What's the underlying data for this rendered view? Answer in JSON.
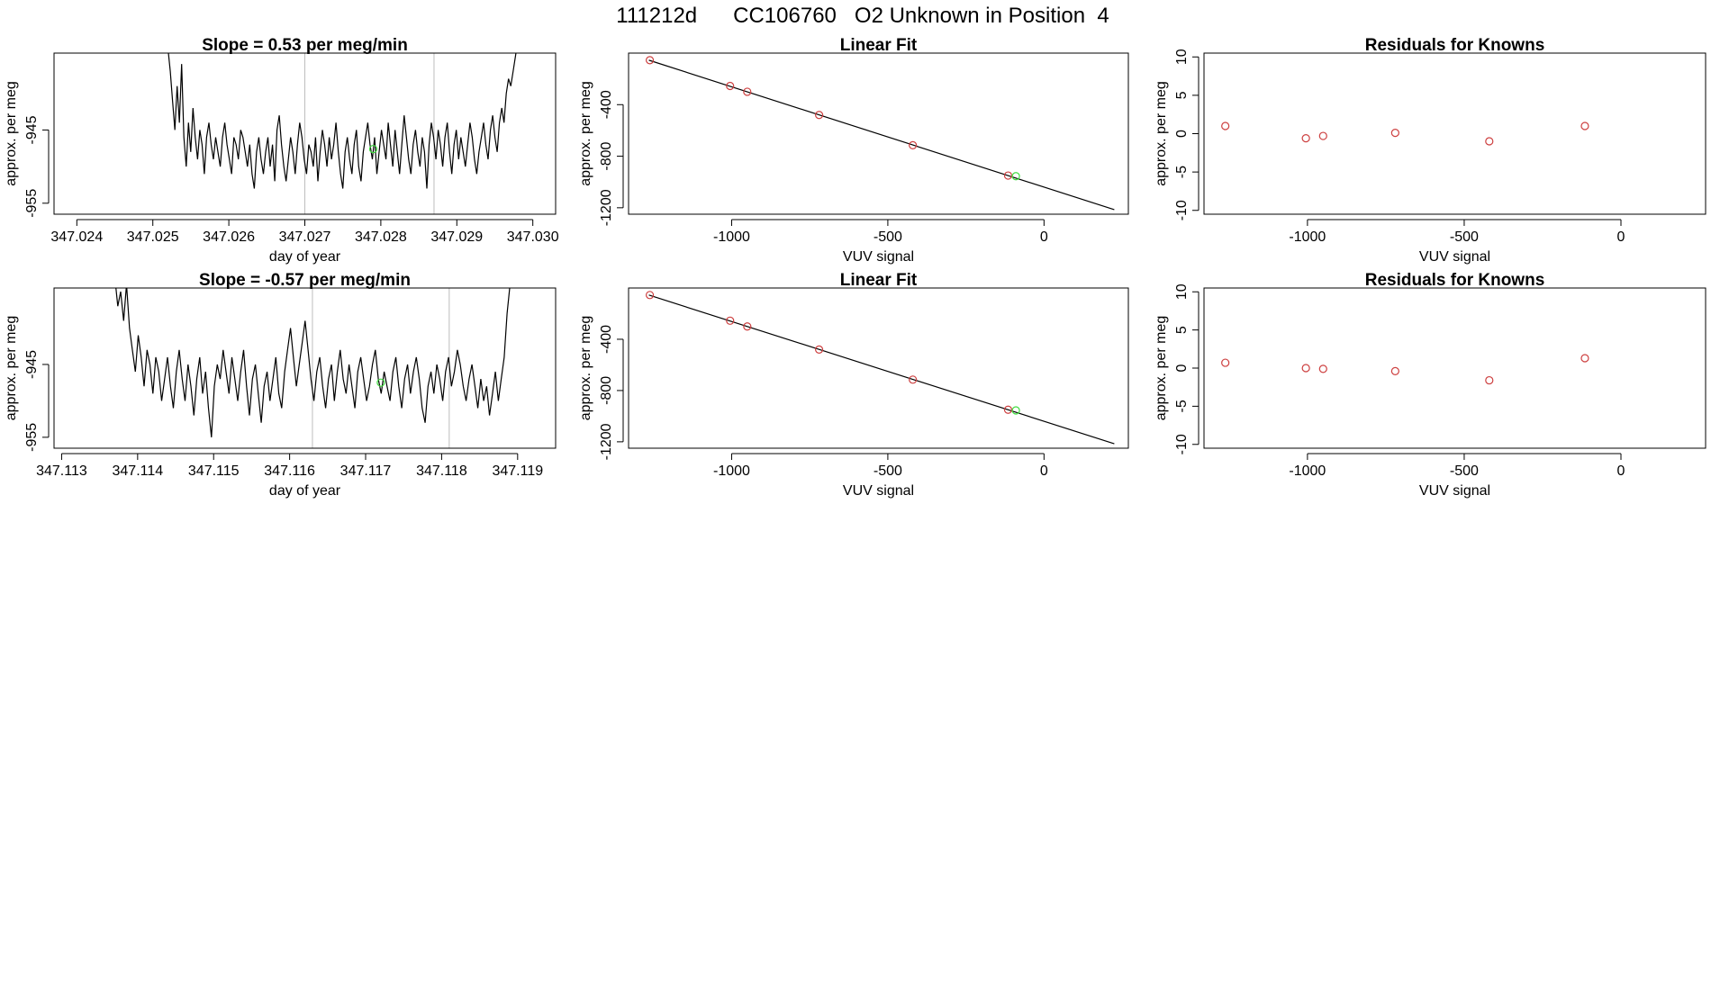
{
  "figure_title": "111212d      CC106760   O2 Unknown in Position  4",
  "colors": {
    "line": "#000000",
    "known_point": "#cd3f3f",
    "unknown_point": "#3fdc3f",
    "gridline": "#bebebe",
    "frame": "#000000"
  },
  "chart_data": [
    {
      "type": "line",
      "title": "Slope =  0.53  per meg/min",
      "xlabel": "day of year",
      "ylabel": "approx. per meg",
      "xlim": [
        347.0237,
        347.0303
      ],
      "ylim": [
        -956.5,
        -934.5
      ],
      "xticks": [
        "347.024",
        "347.025",
        "347.026",
        "347.027",
        "347.028",
        "347.029",
        "347.030"
      ],
      "xtick_values": [
        347.024,
        347.025,
        347.026,
        347.027,
        347.028,
        347.029,
        347.03
      ],
      "yticks": [
        "-945",
        "-955"
      ],
      "ytick_values": [
        -945,
        -955
      ],
      "vlines": [
        347.027,
        347.0287
      ],
      "marker": {
        "x": 347.0279,
        "y": -947.6
      },
      "series": [
        {
          "x_start": 347.0252,
          "x_end": 347.0298,
          "values": [
            -934,
            -937,
            -941,
            -945,
            -939,
            -944,
            -936,
            -946,
            -950,
            -944,
            -948,
            -942,
            -946,
            -949,
            -945,
            -947,
            -951,
            -946,
            -944,
            -947,
            -949,
            -946,
            -948,
            -950,
            -946,
            -944,
            -947,
            -949,
            -951,
            -946,
            -947,
            -949,
            -945,
            -946,
            -948,
            -950,
            -947,
            -951,
            -953,
            -948,
            -946,
            -949,
            -951,
            -948,
            -946,
            -950,
            -947,
            -952,
            -945,
            -943,
            -947,
            -950,
            -952,
            -949,
            -946,
            -948,
            -951,
            -947,
            -944,
            -946,
            -949,
            -951,
            -947,
            -948,
            -950,
            -946,
            -952,
            -948,
            -945,
            -947,
            -950,
            -946,
            -949,
            -947,
            -944,
            -948,
            -951,
            -953,
            -948,
            -946,
            -949,
            -951,
            -947,
            -945,
            -950,
            -952,
            -948,
            -946,
            -944,
            -947,
            -949,
            -946,
            -951,
            -948,
            -945,
            -947,
            -949,
            -944,
            -947,
            -950,
            -945,
            -948,
            -951,
            -947,
            -943,
            -946,
            -949,
            -951,
            -947,
            -945,
            -948,
            -950,
            -946,
            -948,
            -953,
            -947,
            -944,
            -946,
            -949,
            -945,
            -947,
            -950,
            -946,
            -944,
            -948,
            -951,
            -947,
            -945,
            -949,
            -946,
            -948,
            -950,
            -947,
            -944,
            -946,
            -949,
            -951,
            -948,
            -946,
            -944,
            -947,
            -949,
            -945,
            -943,
            -946,
            -948,
            -944,
            -942,
            -944,
            -940,
            -938,
            -939,
            -937,
            -935,
            -933
          ]
        }
      ]
    },
    {
      "type": "scatter",
      "title": "Linear Fit",
      "xlabel": "VUV signal",
      "ylabel": "approx. per meg",
      "xlim": [
        -1330,
        270
      ],
      "ylim": [
        -1250,
        0
      ],
      "xticks": [
        "-1000",
        "-500",
        "0"
      ],
      "xtick_values": [
        -1000,
        -500,
        0
      ],
      "yticks": [
        "-400",
        "-800",
        "-1200"
      ],
      "ytick_values": [
        -400,
        -800,
        -1200
      ],
      "fit_line": {
        "x": [
          -1265,
          225
        ],
        "y": [
          -55,
          -1215
        ]
      },
      "known_points": {
        "x": [
          -1262,
          -1005,
          -950,
          -720,
          -420,
          -115
        ],
        "y": [
          -55,
          -255,
          -300,
          -480,
          -715,
          -950
        ]
      },
      "unknown_points": {
        "x": [
          -90
        ],
        "y": [
          -955
        ]
      }
    },
    {
      "type": "scatter",
      "title": "Residuals for Knowns",
      "xlabel": "VUV signal",
      "ylabel": "approx. per meg",
      "xlim": [
        -1330,
        270
      ],
      "ylim": [
        -10.5,
        10.5
      ],
      "xticks": [
        "-1000",
        "-500",
        "0"
      ],
      "xtick_values": [
        -1000,
        -500,
        0
      ],
      "yticks": [
        "10",
        "5",
        "0",
        "-5",
        "-10"
      ],
      "ytick_values": [
        10,
        5,
        0,
        -5,
        -10
      ],
      "known_points": {
        "x": [
          -1262,
          -1005,
          -950,
          -720,
          -420,
          -115
        ],
        "y": [
          1.0,
          -0.6,
          -0.3,
          0.1,
          -1.0,
          1.0
        ]
      }
    },
    {
      "type": "line",
      "title": "Slope =  -0.57  per meg/min",
      "xlabel": "day of year",
      "ylabel": "approx. per meg",
      "xlim": [
        347.1129,
        347.1195
      ],
      "ylim": [
        -956.5,
        -934.5
      ],
      "xticks": [
        "347.113",
        "347.114",
        "347.115",
        "347.116",
        "347.117",
        "347.118",
        "347.119"
      ],
      "xtick_values": [
        347.113,
        347.114,
        347.115,
        347.116,
        347.117,
        347.118,
        347.119
      ],
      "yticks": [
        "-945",
        "-955"
      ],
      "ytick_values": [
        -945,
        -955
      ],
      "vlines": [
        347.1163,
        347.1181
      ],
      "marker": {
        "x": 347.1172,
        "y": -947.5
      },
      "series": [
        {
          "x_start": 347.1137,
          "x_end": 347.1189,
          "values": [
            -933,
            -937,
            -935,
            -939,
            -934,
            -940,
            -943,
            -946,
            -941,
            -944,
            -948,
            -943,
            -945,
            -949,
            -944,
            -946,
            -950,
            -947,
            -944,
            -948,
            -951,
            -946,
            -943,
            -947,
            -950,
            -945,
            -948,
            -952,
            -947,
            -944,
            -949,
            -946,
            -951,
            -955,
            -948,
            -945,
            -947,
            -943,
            -946,
            -949,
            -944,
            -947,
            -950,
            -946,
            -943,
            -948,
            -952,
            -947,
            -945,
            -949,
            -953,
            -948,
            -946,
            -950,
            -947,
            -944,
            -949,
            -951,
            -946,
            -943,
            -940,
            -944,
            -948,
            -945,
            -942,
            -939,
            -943,
            -947,
            -950,
            -946,
            -944,
            -948,
            -951,
            -947,
            -945,
            -950,
            -946,
            -943,
            -947,
            -949,
            -945,
            -948,
            -951,
            -946,
            -944,
            -947,
            -950,
            -948,
            -945,
            -943,
            -947,
            -949,
            -946,
            -948,
            -950,
            -946,
            -944,
            -948,
            -951,
            -947,
            -945,
            -949,
            -946,
            -944,
            -947,
            -951,
            -953,
            -948,
            -946,
            -949,
            -945,
            -947,
            -950,
            -946,
            -944,
            -948,
            -946,
            -943,
            -945,
            -948,
            -950,
            -947,
            -945,
            -948,
            -951,
            -947,
            -950,
            -948,
            -952,
            -949,
            -946,
            -950,
            -947,
            -944,
            -938,
            -934
          ]
        }
      ]
    },
    {
      "type": "scatter",
      "title": "Linear Fit",
      "xlabel": "VUV signal",
      "ylabel": "approx. per meg",
      "xlim": [
        -1330,
        270
      ],
      "ylim": [
        -1250,
        0
      ],
      "xticks": [
        "-1000",
        "-500",
        "0"
      ],
      "xtick_values": [
        -1000,
        -500,
        0
      ],
      "yticks": [
        "-400",
        "-800",
        "-1200"
      ],
      "ytick_values": [
        -400,
        -800,
        -1200
      ],
      "fit_line": {
        "x": [
          -1265,
          225
        ],
        "y": [
          -55,
          -1215
        ]
      },
      "known_points": {
        "x": [
          -1262,
          -1005,
          -950,
          -720,
          -420,
          -115
        ],
        "y": [
          -55,
          -255,
          -300,
          -480,
          -715,
          -950
        ]
      },
      "unknown_points": {
        "x": [
          -90
        ],
        "y": [
          -955
        ]
      }
    },
    {
      "type": "scatter",
      "title": "Residuals for Knowns",
      "xlabel": "VUV signal",
      "ylabel": "approx. per meg",
      "xlim": [
        -1330,
        270
      ],
      "ylim": [
        -10.5,
        10.5
      ],
      "xticks": [
        "-1000",
        "-500",
        "0"
      ],
      "xtick_values": [
        -1000,
        -500,
        0
      ],
      "yticks": [
        "10",
        "5",
        "0",
        "-5",
        "-10"
      ],
      "ytick_values": [
        10,
        5,
        0,
        -5,
        -10
      ],
      "known_points": {
        "x": [
          -1262,
          -1005,
          -950,
          -720,
          -420,
          -115
        ],
        "y": [
          0.7,
          0.0,
          -0.1,
          -0.4,
          -1.6,
          1.3
        ]
      }
    }
  ]
}
